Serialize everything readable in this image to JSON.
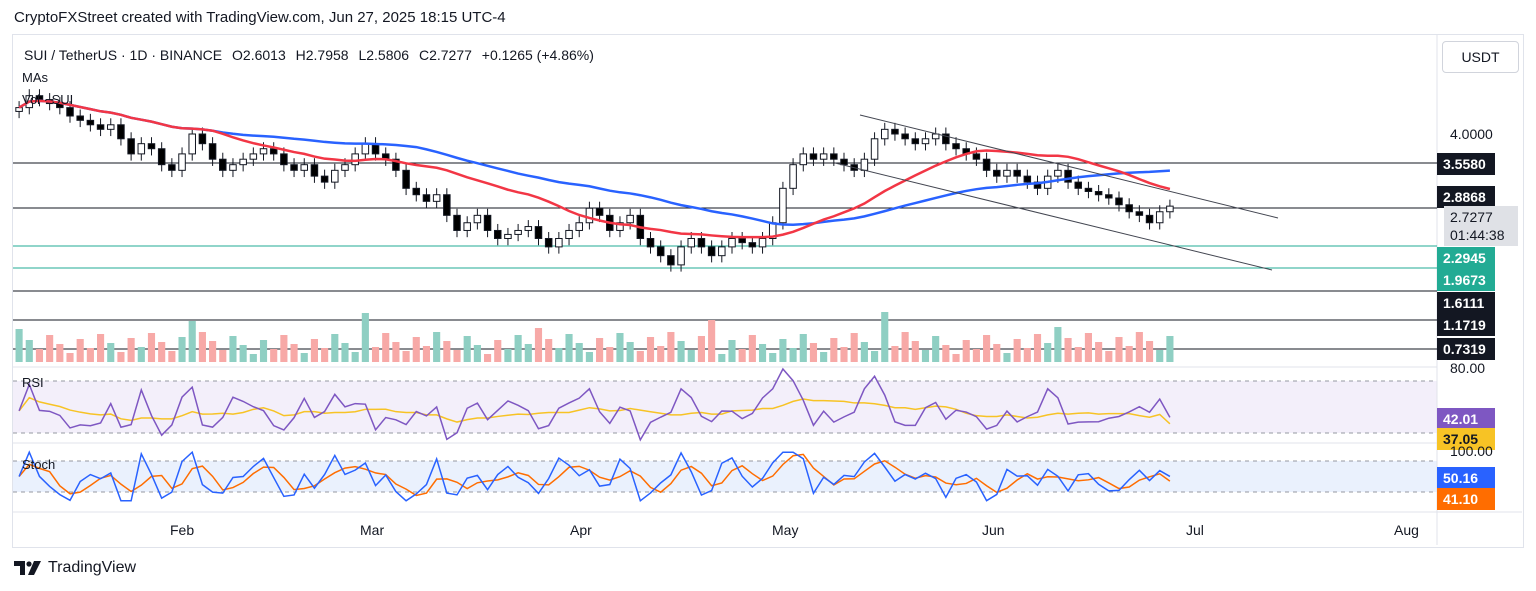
{
  "caption": "CryptoFXStreet created with TradingView.com, Jun 27, 2025 18:15 UTC-4",
  "symbol": {
    "pair": "SUI / TetherUS · 1D · BINANCE",
    "open": "O2.6013",
    "high": "H2.7958",
    "low": "L2.5806",
    "close": "C2.7277",
    "change": "+0.1265 (+4.86%)"
  },
  "indicators": {
    "ma": "MAs",
    "vol": "Vol · SUI",
    "rsi": "RSI",
    "stoch": "Stoch"
  },
  "currency_button": "USDT",
  "price_axis": {
    "top_tick": "4.0000",
    "levels": [
      {
        "value": "3.5580",
        "style": "dark"
      },
      {
        "value": "2.8868",
        "style": "dark"
      },
      {
        "value": "2.2945",
        "style": "teal"
      },
      {
        "value": "1.9673",
        "style": "teal"
      },
      {
        "value": "1.6111",
        "style": "dark"
      },
      {
        "value": "1.1719",
        "style": "dark"
      },
      {
        "value": "0.7319",
        "style": "dark"
      }
    ],
    "current_price": "2.7277",
    "countdown": "01:44:38"
  },
  "rsi_axis": {
    "tick_80": "80.00",
    "rsi": "42.01",
    "rsi_ma": "37.05"
  },
  "stoch_axis": {
    "tick_100": "100.00",
    "k": "50.16",
    "d": "41.10"
  },
  "months": [
    "Feb",
    "Mar",
    "Apr",
    "May",
    "Jun",
    "Jul",
    "Aug"
  ],
  "footer_brand": "TradingView",
  "colors": {
    "up": "#089981",
    "down": "#000000",
    "ma50": "#f23645",
    "ma100": "#2962ff",
    "rsi": "#7e57c2",
    "rsi_ma": "#f7c325",
    "stoch_k": "#2962ff",
    "stoch_d": "#ff6d00",
    "teal": "#22ab94"
  },
  "chart_data": {
    "type": "candlestick",
    "symbol": "SUI / TetherUS",
    "timeframe": "1D",
    "start": "2025-01-01",
    "end": "2025-06-27",
    "ohlc_last": {
      "open": 2.6013,
      "high": 2.7958,
      "low": 2.5806,
      "close": 2.7277
    },
    "horizontal_levels": [
      3.558,
      2.8868,
      2.2945,
      1.9673,
      1.6111,
      1.1719,
      0.7319
    ],
    "close_series": [
      4.6,
      4.9,
      4.8,
      4.7,
      4.6,
      4.4,
      4.3,
      4.2,
      4.1,
      4.2,
      3.9,
      3.6,
      3.8,
      3.7,
      3.4,
      3.3,
      3.6,
      4.0,
      3.8,
      3.5,
      3.3,
      3.4,
      3.5,
      3.6,
      3.7,
      3.6,
      3.4,
      3.3,
      3.4,
      3.2,
      3.1,
      3.3,
      3.4,
      3.6,
      3.8,
      3.6,
      3.5,
      3.3,
      3.0,
      2.9,
      2.8,
      2.9,
      2.6,
      2.4,
      2.5,
      2.6,
      2.4,
      2.3,
      2.35,
      2.4,
      2.45,
      2.3,
      2.2,
      2.3,
      2.4,
      2.5,
      2.7,
      2.6,
      2.4,
      2.5,
      2.6,
      2.3,
      2.2,
      2.1,
      2.0,
      2.2,
      2.3,
      2.2,
      2.1,
      2.2,
      2.3,
      2.25,
      2.2,
      2.3,
      2.5,
      3.0,
      3.4,
      3.6,
      3.5,
      3.6,
      3.5,
      3.4,
      3.3,
      3.5,
      3.9,
      4.1,
      4.0,
      3.9,
      3.8,
      3.9,
      4.0,
      3.8,
      3.7,
      3.6,
      3.5,
      3.3,
      3.2,
      3.3,
      3.2,
      3.1,
      3.0,
      3.2,
      3.3,
      3.1,
      3.0,
      2.95,
      2.9,
      2.85,
      2.75,
      2.65,
      2.6,
      2.5,
      2.65,
      2.73
    ],
    "ma50_endpoints": {
      "start": 4.5,
      "low": 2.3,
      "end": 3.45
    },
    "ma100_endpoints": {
      "start": 3.7,
      "high": 4.05,
      "end": 2.95
    },
    "channel": {
      "upper": [
        4.5,
        2.75
      ],
      "lower": [
        3.55,
        1.95
      ]
    },
    "rsi": {
      "value": 42.01,
      "ma": 37.05,
      "upper_band": 70,
      "lower_band": 30
    },
    "stoch": {
      "k": 50.16,
      "d": 41.1,
      "upper_band": 80,
      "lower_band": 20
    }
  }
}
